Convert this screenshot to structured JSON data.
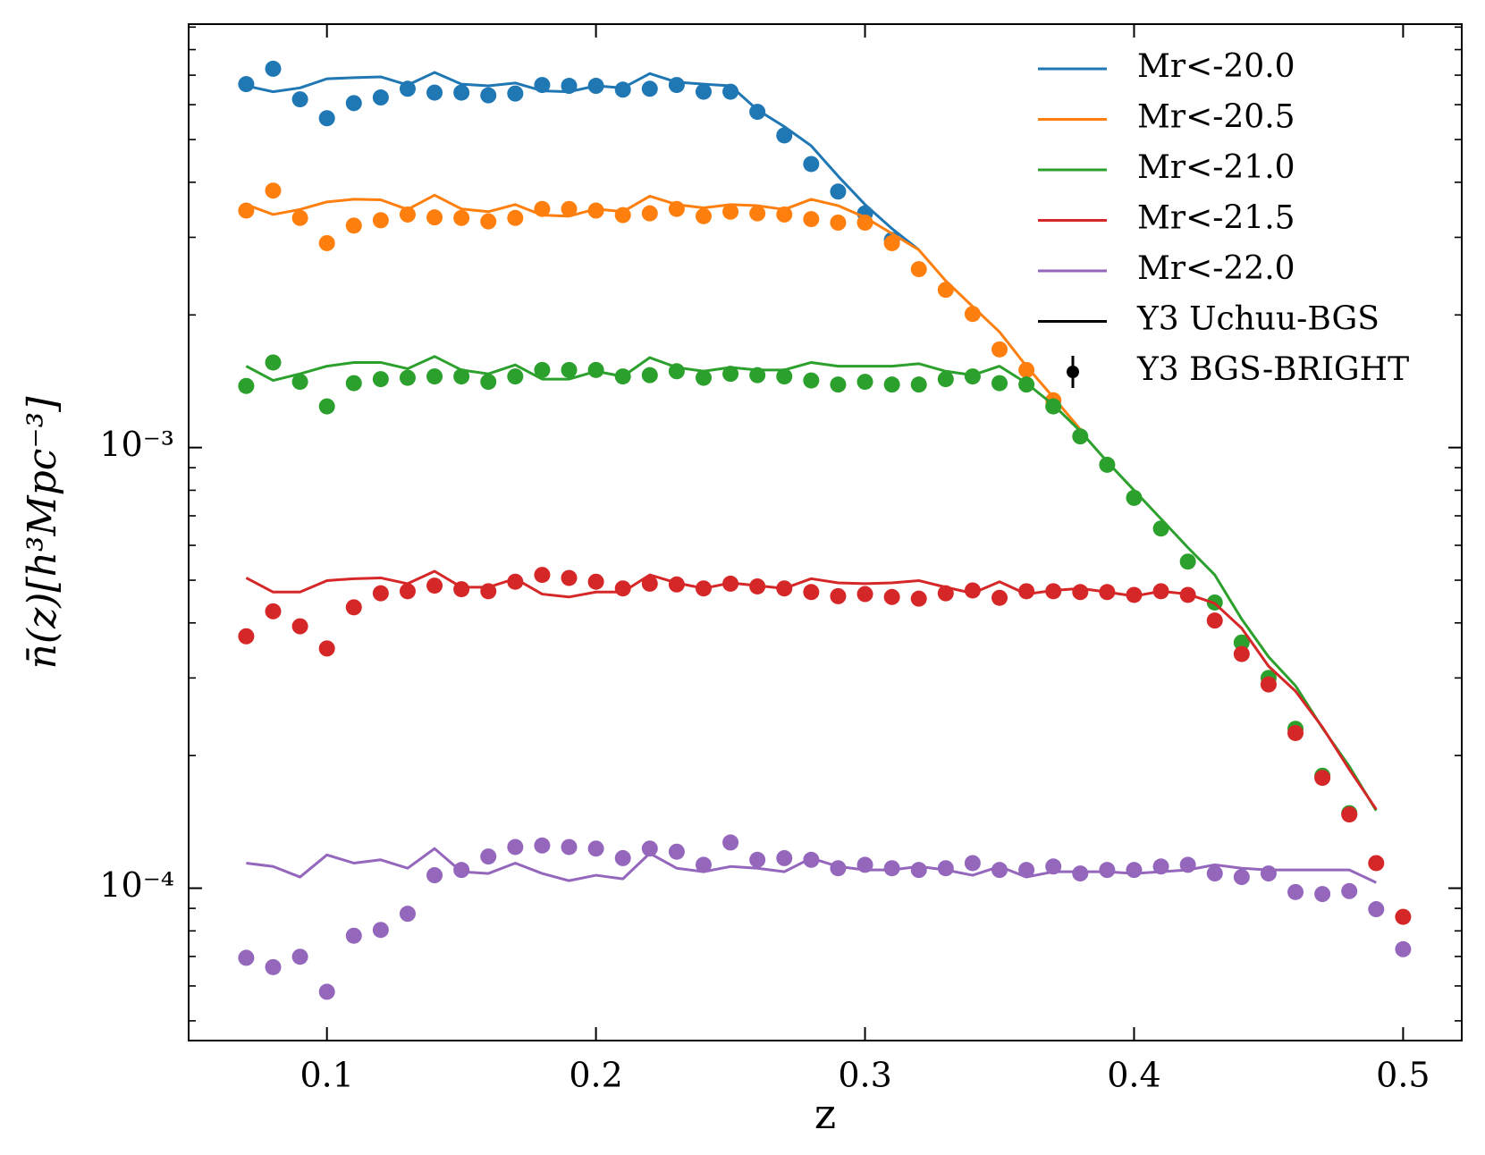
{
  "chart_data": {
    "type": "line",
    "xlabel": "z",
    "ylabel": "n̄(z)[h³Mpc⁻³]",
    "yscale": "log",
    "legend": "upper right",
    "line_label": "Y3 Uchuu-BGS",
    "point_label": "Y3 BGS-BRIGHT",
    "xlim": [
      0.0486,
      0.5218
    ],
    "ylim": [
      4.51e-05,
      0.00914
    ],
    "xticks": [
      0.1,
      0.2,
      0.3,
      0.4,
      0.5
    ],
    "yticks": [
      {
        "value": 0.0001,
        "label": "10⁻⁴"
      },
      {
        "value": 0.001,
        "label": "10⁻³"
      }
    ],
    "yminorticks": [
      5e-05,
      6e-05,
      7e-05,
      8e-05,
      9e-05,
      0.0002,
      0.0003,
      0.0004,
      0.0005,
      0.0006,
      0.0007,
      0.0008,
      0.0009,
      0.002,
      0.003,
      0.004,
      0.005,
      0.006,
      0.007,
      0.008,
      0.009
    ],
    "x": [
      0.07,
      0.08,
      0.09,
      0.1,
      0.11,
      0.12,
      0.13,
      0.14,
      0.15,
      0.16,
      0.17,
      0.18,
      0.19,
      0.2,
      0.21,
      0.22,
      0.23,
      0.24,
      0.25,
      0.26,
      0.27,
      0.28,
      0.29,
      0.3,
      0.31,
      0.32,
      0.33,
      0.34,
      0.35,
      0.36,
      0.37,
      0.38,
      0.39,
      0.4,
      0.41,
      0.42,
      0.43,
      0.44,
      0.45,
      0.46,
      0.47,
      0.48,
      0.49,
      0.5
    ],
    "series": [
      {
        "name": "Mr<-20.0",
        "color": "#1f77b4",
        "line_values": [
          0.00662,
          0.00642,
          0.00655,
          0.00687,
          0.00691,
          0.00694,
          0.00665,
          0.0071,
          0.00668,
          0.00662,
          0.00672,
          0.00645,
          0.00642,
          0.00662,
          0.00655,
          0.00706,
          0.00675,
          0.00668,
          0.00662,
          0.00584,
          0.00535,
          0.00484,
          0.00413,
          0.00356,
          0.00314,
          0.00281,
          null,
          null,
          null,
          null,
          null,
          null,
          null,
          null,
          null,
          null,
          null,
          null,
          null,
          null,
          null,
          null,
          null,
          null
        ],
        "point_values": [
          0.00668,
          0.00724,
          0.00617,
          0.00559,
          0.00605,
          0.00623,
          0.00652,
          0.00639,
          0.00639,
          0.0063,
          0.00636,
          0.00665,
          0.00662,
          0.00662,
          0.00649,
          0.00652,
          0.00665,
          0.00642,
          0.00642,
          0.00578,
          0.00511,
          0.0044,
          0.00381,
          0.0034,
          0.00296,
          null,
          null,
          null,
          null,
          null,
          null,
          null,
          null,
          null,
          null,
          null,
          null,
          null,
          null,
          null,
          null,
          null,
          null,
          null
        ]
      },
      {
        "name": "Mr<-20.5",
        "color": "#ff7f0e",
        "line_values": [
          0.00356,
          0.00338,
          0.00347,
          0.00361,
          0.00366,
          0.00365,
          0.00347,
          0.00374,
          0.00348,
          0.00343,
          0.00356,
          0.00337,
          0.00335,
          0.00348,
          0.00343,
          0.00372,
          0.00356,
          0.0035,
          0.00356,
          0.00354,
          0.00347,
          0.00366,
          0.00354,
          0.00333,
          0.00306,
          0.00281,
          0.00239,
          0.00209,
          0.00183,
          0.00153,
          0.0013,
          0.0011,
          null,
          null,
          null,
          null,
          null,
          null,
          null,
          null,
          null,
          null,
          null,
          null
        ],
        "point_values": [
          0.00345,
          0.00383,
          0.00332,
          0.00291,
          0.00319,
          0.00328,
          0.00338,
          0.00333,
          0.00332,
          0.00326,
          0.00332,
          0.00348,
          0.00348,
          0.00345,
          0.00337,
          0.0034,
          0.00348,
          0.00335,
          0.00343,
          0.0034,
          0.00338,
          0.0033,
          0.00324,
          0.00324,
          0.00291,
          0.00254,
          0.00228,
          0.00201,
          0.00167,
          0.0015,
          0.00128,
          null,
          null,
          null,
          null,
          null,
          null,
          null,
          null,
          null,
          null,
          null,
          null,
          null
        ]
      },
      {
        "name": "Mr<-21.0",
        "color": "#2ca02c",
        "line_values": [
          0.00153,
          0.00142,
          0.00147,
          0.00153,
          0.00156,
          0.00156,
          0.00151,
          0.00161,
          0.0015,
          0.00147,
          0.00154,
          0.00143,
          0.00143,
          0.00149,
          0.00145,
          0.0016,
          0.00152,
          0.00149,
          0.00152,
          0.0015,
          0.0015,
          0.00156,
          0.00153,
          0.00153,
          0.00153,
          0.00155,
          0.00149,
          0.00146,
          0.00153,
          0.0014,
          0.00125,
          0.00109,
          0.000929,
          0.0008,
          0.000689,
          0.000593,
          0.000514,
          0.000408,
          0.000335,
          0.000288,
          0.000231,
          0.000189,
          0.00015,
          null
        ],
        "point_values": [
          0.00138,
          0.00156,
          0.00141,
          0.00124,
          0.0014,
          0.00143,
          0.00144,
          0.00145,
          0.00145,
          0.00141,
          0.00145,
          0.0015,
          0.0015,
          0.0015,
          0.00145,
          0.00146,
          0.00149,
          0.00144,
          0.00147,
          0.00146,
          0.00145,
          0.00142,
          0.00139,
          0.00141,
          0.00139,
          0.00139,
          0.00143,
          0.00145,
          0.0014,
          0.00139,
          0.00124,
          0.00106,
          0.000914,
          0.000769,
          0.000655,
          0.000551,
          0.000445,
          0.000361,
          0.0003,
          0.00023,
          0.00018,
          0.000148,
          null,
          null
        ]
      },
      {
        "name": "Mr<-21.5",
        "color": "#d62728",
        "line_values": [
          0.000506,
          0.00047,
          0.00047,
          0.000499,
          0.000504,
          0.000506,
          0.000491,
          0.000524,
          0.000482,
          0.000482,
          0.000504,
          0.000465,
          0.000458,
          0.00047,
          0.00047,
          0.000514,
          0.000493,
          0.000479,
          0.000493,
          0.000486,
          0.000479,
          0.000504,
          0.000493,
          0.000491,
          0.000493,
          0.000499,
          0.000482,
          0.000467,
          0.000496,
          0.000465,
          0.000474,
          0.000479,
          0.00047,
          0.00046,
          0.000472,
          0.000465,
          0.000443,
          0.000389,
          0.000319,
          0.00028,
          0.000232,
          0.000186,
          0.000151,
          null
        ],
        "point_values": [
          0.000373,
          0.000425,
          0.000393,
          0.00035,
          0.000434,
          0.000467,
          0.000472,
          0.000486,
          0.000477,
          0.000472,
          0.000496,
          0.000514,
          0.000506,
          0.000496,
          0.000479,
          0.000491,
          0.000489,
          0.000479,
          0.000491,
          0.000484,
          0.000479,
          0.00047,
          0.00046,
          0.000465,
          0.000458,
          0.000454,
          0.000467,
          0.000474,
          0.000456,
          0.000472,
          0.000472,
          0.00047,
          0.00047,
          0.000463,
          0.000472,
          0.000463,
          0.000405,
          0.00034,
          0.00029,
          0.000225,
          0.000178,
          0.000147,
          0.000114,
          8.61e-05
        ]
      },
      {
        "name": "Mr<-22.0",
        "color": "#9467bd",
        "line_values": [
          0.000114,
          0.000112,
          0.000106,
          0.000119,
          0.000114,
          0.000116,
          0.000111,
          0.000123,
          0.000109,
          0.000108,
          0.000114,
          0.000108,
          0.000104,
          0.000107,
          0.000105,
          0.00012,
          0.000111,
          0.000109,
          0.000112,
          0.000111,
          0.000109,
          0.000117,
          0.000112,
          0.00011,
          0.00011,
          0.000112,
          0.00011,
          0.000107,
          0.000112,
          0.000106,
          0.000109,
          0.000109,
          0.000109,
          0.000108,
          0.000109,
          0.00011,
          0.000113,
          0.000111,
          0.00011,
          0.00011,
          0.00011,
          0.00011,
          0.000103,
          null
        ],
        "point_values": [
          6.95e-05,
          6.62e-05,
          6.99e-05,
          5.82e-05,
          7.8e-05,
          8.04e-05,
          8.75e-05,
          0.000107,
          0.00011,
          0.000118,
          0.000124,
          0.000125,
          0.000124,
          0.000123,
          0.000117,
          0.000123,
          0.000121,
          0.000113,
          0.000127,
          0.000116,
          0.000117,
          0.000116,
          0.000111,
          0.000113,
          0.000111,
          0.00011,
          0.000111,
          0.000114,
          0.00011,
          0.00011,
          0.000112,
          0.000108,
          0.00011,
          0.00011,
          0.000112,
          0.000113,
          0.000108,
          0.000106,
          0.000108,
          9.8e-05,
          9.7e-05,
          9.85e-05,
          8.96e-05,
          7.27e-05
        ]
      }
    ]
  }
}
